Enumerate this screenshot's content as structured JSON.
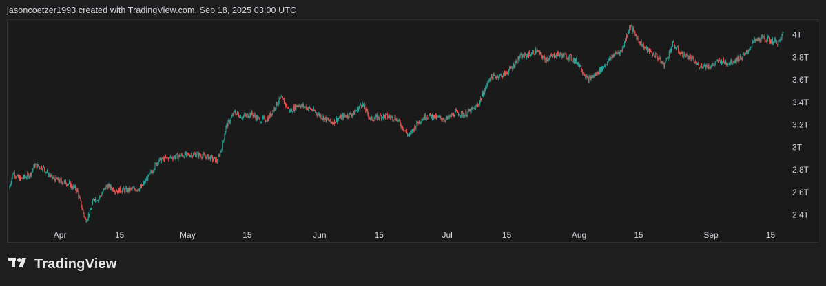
{
  "header": {
    "attribution": "jasoncoetzer1993 created with TradingView.com, Sep 18, 2025 03:00 UTC"
  },
  "brand": {
    "name": "TradingView",
    "logo_icon": "tradingview-logo-icon"
  },
  "colors": {
    "background": "#1e1e1e",
    "up_candle": "#26a69a",
    "down_candle": "#ef5350",
    "axis_text": "#d1d4dc",
    "border": "#2f3137"
  },
  "chart_data": {
    "type": "candlestick",
    "title": "",
    "xlabel": "",
    "ylabel": "",
    "y_unit": "T",
    "ylim": [
      2.3,
      4.12
    ],
    "y_ticks": [
      "2.4T",
      "2.6T",
      "2.8T",
      "3T",
      "3.2T",
      "3.4T",
      "3.6T",
      "3.8T",
      "4T"
    ],
    "y_tick_values": [
      2.4,
      2.6,
      2.8,
      3.0,
      3.2,
      3.4,
      3.6,
      3.8,
      4.0
    ],
    "x_tick_labels": [
      "Apr",
      "15",
      "May",
      "15",
      "Jun",
      "15",
      "Jul",
      "15",
      "Aug",
      "15",
      "Sep",
      "15"
    ],
    "x_tick_dates": [
      "2025-04-01",
      "2025-04-15",
      "2025-05-01",
      "2025-05-15",
      "2025-06-01",
      "2025-06-15",
      "2025-07-01",
      "2025-07-15",
      "2025-08-01",
      "2025-08-15",
      "2025-09-01",
      "2025-09-15"
    ],
    "x_range": [
      "2025-03-20",
      "2025-09-18"
    ],
    "grid": false,
    "series": [
      {
        "close_path": [
          [
            "2025-03-20",
            2.63
          ],
          [
            "2025-03-21",
            2.78
          ],
          [
            "2025-03-22",
            2.73
          ],
          [
            "2025-03-23",
            2.72
          ],
          [
            "2025-03-25",
            2.76
          ],
          [
            "2025-03-26",
            2.84
          ],
          [
            "2025-03-28",
            2.82
          ],
          [
            "2025-03-30",
            2.73
          ],
          [
            "2025-04-01",
            2.7
          ],
          [
            "2025-04-03",
            2.68
          ],
          [
            "2025-04-05",
            2.62
          ],
          [
            "2025-04-07",
            2.35
          ],
          [
            "2025-04-08",
            2.42
          ],
          [
            "2025-04-09",
            2.55
          ],
          [
            "2025-04-10",
            2.54
          ],
          [
            "2025-04-12",
            2.66
          ],
          [
            "2025-04-14",
            2.62
          ],
          [
            "2025-04-17",
            2.62
          ],
          [
            "2025-04-20",
            2.64
          ],
          [
            "2025-04-22",
            2.75
          ],
          [
            "2025-04-24",
            2.88
          ],
          [
            "2025-04-27",
            2.91
          ],
          [
            "2025-04-30",
            2.93
          ],
          [
            "2025-05-03",
            2.94
          ],
          [
            "2025-05-06",
            2.91
          ],
          [
            "2025-05-08",
            2.88
          ],
          [
            "2025-05-09",
            3.0
          ],
          [
            "2025-05-10",
            3.18
          ],
          [
            "2025-05-12",
            3.31
          ],
          [
            "2025-05-14",
            3.27
          ],
          [
            "2025-05-16",
            3.3
          ],
          [
            "2025-05-18",
            3.24
          ],
          [
            "2025-05-20",
            3.26
          ],
          [
            "2025-05-22",
            3.39
          ],
          [
            "2025-05-23",
            3.44
          ],
          [
            "2025-05-25",
            3.32
          ],
          [
            "2025-05-27",
            3.38
          ],
          [
            "2025-05-30",
            3.34
          ],
          [
            "2025-06-02",
            3.26
          ],
          [
            "2025-06-04",
            3.22
          ],
          [
            "2025-06-06",
            3.27
          ],
          [
            "2025-06-09",
            3.3
          ],
          [
            "2025-06-11",
            3.39
          ],
          [
            "2025-06-13",
            3.25
          ],
          [
            "2025-06-16",
            3.28
          ],
          [
            "2025-06-19",
            3.26
          ],
          [
            "2025-06-22",
            3.1
          ],
          [
            "2025-06-24",
            3.22
          ],
          [
            "2025-06-26",
            3.28
          ],
          [
            "2025-06-28",
            3.27
          ],
          [
            "2025-07-01",
            3.25
          ],
          [
            "2025-07-03",
            3.31
          ],
          [
            "2025-07-05",
            3.29
          ],
          [
            "2025-07-08",
            3.36
          ],
          [
            "2025-07-10",
            3.52
          ],
          [
            "2025-07-11",
            3.62
          ],
          [
            "2025-07-14",
            3.64
          ],
          [
            "2025-07-16",
            3.7
          ],
          [
            "2025-07-18",
            3.8
          ],
          [
            "2025-07-20",
            3.82
          ],
          [
            "2025-07-22",
            3.86
          ],
          [
            "2025-07-24",
            3.78
          ],
          [
            "2025-07-27",
            3.83
          ],
          [
            "2025-07-30",
            3.8
          ],
          [
            "2025-08-01",
            3.74
          ],
          [
            "2025-08-03",
            3.6
          ],
          [
            "2025-08-05",
            3.65
          ],
          [
            "2025-08-07",
            3.73
          ],
          [
            "2025-08-09",
            3.82
          ],
          [
            "2025-08-11",
            3.86
          ],
          [
            "2025-08-13",
            4.08
          ],
          [
            "2025-08-15",
            3.95
          ],
          [
            "2025-08-17",
            3.86
          ],
          [
            "2025-08-19",
            3.82
          ],
          [
            "2025-08-21",
            3.73
          ],
          [
            "2025-08-23",
            3.92
          ],
          [
            "2025-08-25",
            3.83
          ],
          [
            "2025-08-27",
            3.8
          ],
          [
            "2025-08-29",
            3.73
          ],
          [
            "2025-09-01",
            3.72
          ],
          [
            "2025-09-03",
            3.77
          ],
          [
            "2025-09-05",
            3.75
          ],
          [
            "2025-09-07",
            3.78
          ],
          [
            "2025-09-09",
            3.82
          ],
          [
            "2025-09-11",
            3.94
          ],
          [
            "2025-09-13",
            3.97
          ],
          [
            "2025-09-15",
            3.95
          ],
          [
            "2025-09-17",
            3.93
          ],
          [
            "2025-09-18",
            4.02
          ]
        ]
      }
    ]
  }
}
